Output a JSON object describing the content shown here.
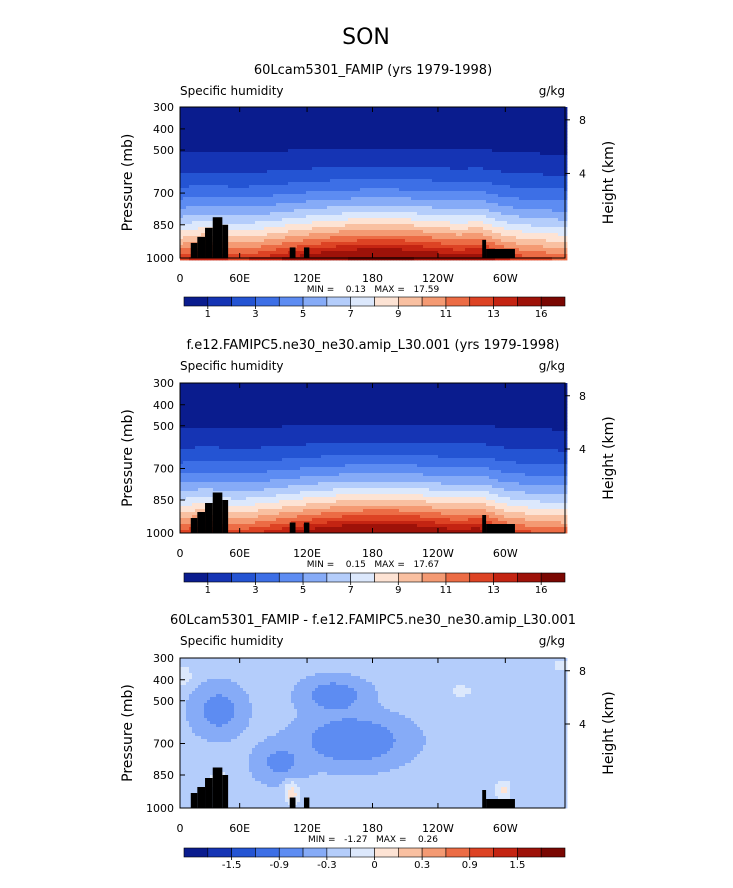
{
  "season_title": "SON",
  "colors": {
    "sequential": [
      "#0a1c8e",
      "#1534b4",
      "#2454d3",
      "#3d6fe6",
      "#5d8cf2",
      "#86abf7",
      "#b4cdfb",
      "#dce8fc",
      "#fde3d4",
      "#f9c0a1",
      "#f49a73",
      "#ec6c45",
      "#dd4324",
      "#c42412",
      "#9e1209",
      "#7a0702"
    ],
    "diverging": [
      "#0a1c8e",
      "#1534b4",
      "#2454d3",
      "#3d6fe6",
      "#5d8cf2",
      "#86abf7",
      "#b4cdfb",
      "#dce8fc",
      "#fde3d4",
      "#f9c0a1",
      "#f49a73",
      "#ec6c45",
      "#dd4324",
      "#c42412",
      "#9e1209",
      "#7a0702"
    ],
    "terrain": "#000000"
  },
  "chart_data": [
    {
      "type": "contour",
      "title": "60Lcam5301_FAMIP (yrs 1979-1998)",
      "left_label": "Specific humidity",
      "right_label": "g/kg",
      "ylabel": "Pressure (mb)",
      "y2label": "Height (km)",
      "y_ticks": [
        "300",
        "400",
        "500",
        "700",
        "850",
        "1000"
      ],
      "y2_ticks": [
        "8",
        "4"
      ],
      "x_ticks": [
        "0",
        "60E",
        "120E",
        "180",
        "120W",
        "60W"
      ],
      "stats": "MIN =    0.13   MAX =   17.59",
      "colorbar_labels": [
        "1",
        "3",
        "5",
        "7",
        "9",
        "11",
        "13",
        "16"
      ],
      "field": "humidity",
      "intensity": 1.0
    },
    {
      "type": "contour",
      "title": "f.e12.FAMIPC5.ne30_ne30.amip_L30.001 (yrs 1979-1998)",
      "left_label": "Specific humidity",
      "right_label": "g/kg",
      "ylabel": "Pressure (mb)",
      "y2label": "Height (km)",
      "y_ticks": [
        "300",
        "400",
        "500",
        "700",
        "850",
        "1000"
      ],
      "y2_ticks": [
        "8",
        "4"
      ],
      "x_ticks": [
        "0",
        "60E",
        "120E",
        "180",
        "120W",
        "60W"
      ],
      "stats": "MIN =    0.15   MAX =   17.67",
      "colorbar_labels": [
        "1",
        "3",
        "5",
        "7",
        "9",
        "11",
        "13",
        "16"
      ],
      "field": "humidity",
      "intensity": 1.0
    },
    {
      "type": "contour",
      "title": "60Lcam5301_FAMIP - f.e12.FAMIPC5.ne30_ne30.amip_L30.001",
      "left_label": "Specific humidity",
      "right_label": "g/kg",
      "ylabel": "Pressure (mb)",
      "y2label": "Height (km)",
      "y_ticks": [
        "300",
        "400",
        "500",
        "700",
        "850",
        "1000"
      ],
      "y2_ticks": [
        "8",
        "4"
      ],
      "x_ticks": [
        "0",
        "60E",
        "120E",
        "180",
        "120W",
        "60W"
      ],
      "stats": "MIN =   -1.27   MAX =    0.26",
      "colorbar_labels": [
        "-1.5",
        "-0.9",
        "-0.3",
        "0",
        "0.3",
        "0.9",
        "1.5"
      ],
      "field": "difference",
      "intensity": 1.0
    }
  ]
}
